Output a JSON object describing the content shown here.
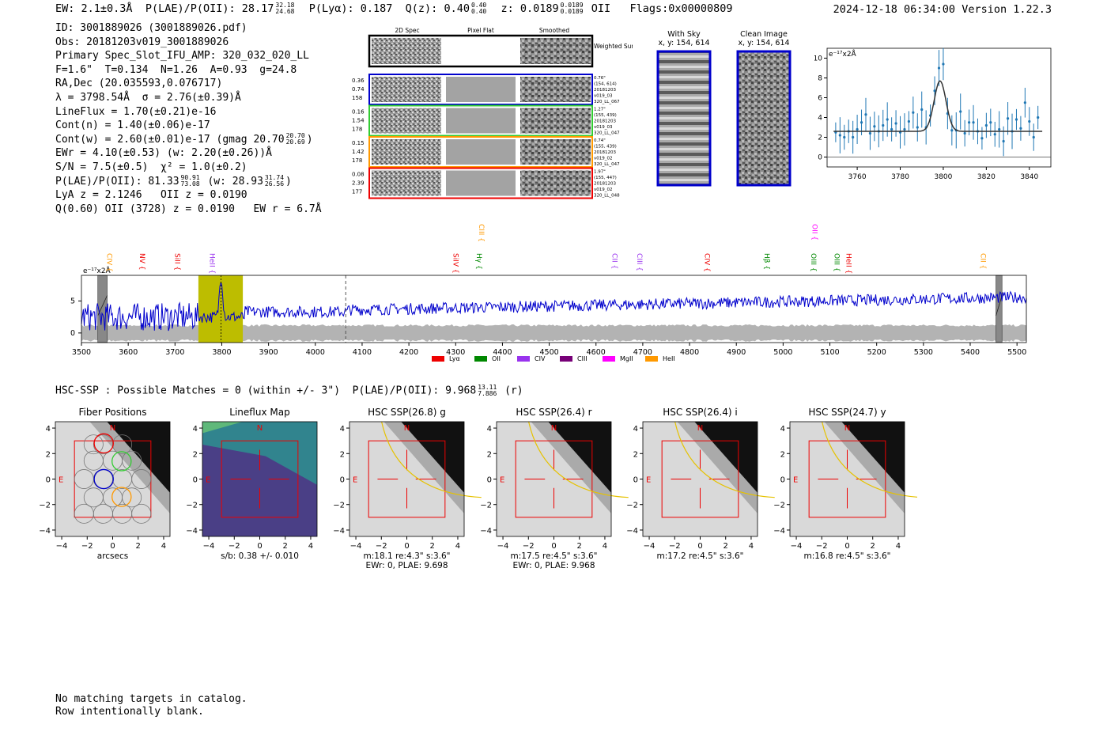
{
  "header": {
    "ew": "EW: 2.1±0.3Å",
    "plae_label": "P(LAE)/P(OII): 28.17",
    "plae_hi": "32.18",
    "plae_lo": "24.68",
    "plya": "P(Lyα): 0.187",
    "qz_label": "Q(z): 0.40",
    "qz_hi": "0.40",
    "qz_lo": "0.40",
    "z_label": "z: 0.0189",
    "z_hi": "0.0189",
    "z_lo": "0.0189",
    "z_line": "OII",
    "flags": "Flags:0x00000809",
    "date": "2024-12-18 06:34:00",
    "version": "Version 1.22.3"
  },
  "info": {
    "id": "ID: 3001889026 (3001889026.pdf)",
    "obs": "Obs: 20181203v019_3001889026",
    "primary": "Primary Spec_Slot_IFU_AMP: 320_032_020_LL",
    "fwhm": "F=1.6\"  T=0.134  N=1.26  A=0.93  g=24.8",
    "radec": "RA,Dec (20.035593,0.076717)",
    "lambda": "λ = 3798.54Å  σ = 2.76(±0.39)Å",
    "lineflux": "LineFlux = 1.70(±0.21)e-16",
    "contn": "Cont(n) = 1.40(±0.06)e-17",
    "contw": "Cont(w) = 2.60(±0.01)e-17 (gmag 20.70",
    "contw_hi": "20.70",
    "contw_lo": "20.69",
    "ewr": "EWr = 4.10(±0.53) (w: 2.20(±0.26))Å",
    "sn": "S/N = 7.5(±0.5)  χ² = 1.0(±0.2)",
    "plae2": "P(LAE)/P(OII): 81.33",
    "plae2_hi": "90.91",
    "plae2_lo": "73.08",
    "plae2_w": "(w: 28.93",
    "plae2_w_hi": "31.74",
    "plae2_w_lo": "26.56",
    "lya": "LyA z = 2.1246   OII z = 0.0190",
    "q": "Q(0.60) OII (3728) z = 0.0190   EW r = 6.7Å"
  },
  "cutouts": {
    "col_headers": [
      "2D Spec",
      "Pixel Flat",
      "Smoothed"
    ],
    "weighted": "Weighted Sum",
    "rows": [
      {
        "color": "#0000cc",
        "left": [
          "0.36",
          "0.74",
          "158"
        ],
        "right": [
          "0.76\"",
          "(154, 614)",
          "20181203",
          "v019_03",
          "320_LL_067"
        ]
      },
      {
        "color": "#33cc33",
        "left": [
          "0.16",
          "1.54",
          "178"
        ],
        "right": [
          "1.27\"",
          "(155, 439)",
          "20181203",
          "v019_03",
          "320_LL_047"
        ]
      },
      {
        "color": "#ff9900",
        "left": [
          "0.15",
          "1.42",
          "178"
        ],
        "right": [
          "0.74\"",
          "(155, 439)",
          "20181203",
          "v019_02",
          "320_LL_047"
        ]
      },
      {
        "color": "#ee0000",
        "left": [
          "0.08",
          "2.39",
          "177"
        ],
        "right": [
          "1.97\"",
          "(155, 447)",
          "20181203",
          "v019_02",
          "320_LL_048"
        ]
      }
    ]
  },
  "sky": {
    "with_sky_title": "With Sky",
    "with_sky_xy": "x, y: 154, 614",
    "clean_title": "Clean Image",
    "clean_xy": "x, y: 154, 614"
  },
  "zoom_chart": {
    "unit_label": "e⁻¹⁷x2Å",
    "xlim": [
      3746,
      3850
    ],
    "ylim": [
      -1,
      11
    ],
    "xticks": [
      "3760",
      "3780",
      "3800",
      "3820",
      "3840"
    ],
    "yticks": [
      "0",
      "2",
      "4",
      "6",
      "8",
      "10"
    ],
    "color": "#1f77b4"
  },
  "chart_data": [
    {
      "type": "scatter",
      "title": "",
      "xlabel": "",
      "ylabel": "e⁻¹⁷x2Å",
      "xlim": [
        3746,
        3850
      ],
      "ylim": [
        -1,
        11
      ],
      "x": [
        3750,
        3752,
        3754,
        3756,
        3758,
        3760,
        3762,
        3764,
        3766,
        3768,
        3770,
        3772,
        3774,
        3776,
        3778,
        3780,
        3782,
        3784,
        3786,
        3788,
        3790,
        3792,
        3794,
        3796,
        3798,
        3800,
        3802,
        3804,
        3806,
        3808,
        3810,
        3812,
        3814,
        3816,
        3818,
        3820,
        3822,
        3824,
        3826,
        3828,
        3830,
        3832,
        3834,
        3836,
        3838,
        3840,
        3842,
        3844
      ],
      "y": [
        2.5,
        2.2,
        2.0,
        2.6,
        2.0,
        2.8,
        3.5,
        4.3,
        2.4,
        3.1,
        2.6,
        3.2,
        3.8,
        2.8,
        3.4,
        2.5,
        2.8,
        3.6,
        4.5,
        3.0,
        4.8,
        3.0,
        4.2,
        6.7,
        9.0,
        9.4,
        4.4,
        2.7,
        2.7,
        4.6,
        2.4,
        3.5,
        3.5,
        2.6,
        1.9,
        3.2,
        3.5,
        2.3,
        2.8,
        1.6,
        3.9,
        2.6,
        3.8,
        2.9,
        5.5,
        3.6,
        2.0,
        4.0
      ],
      "model": "gaussian peak 7.7 at 3798.5, sigma 2.76, continuum 2.6"
    },
    {
      "type": "line",
      "title": "",
      "xlabel": "",
      "ylabel": "e⁻¹⁷x2Å",
      "xlim": [
        3500,
        5520
      ],
      "ylim": [
        -1.5,
        9
      ],
      "xticks": [
        "3500",
        "3600",
        "3700",
        "3800",
        "3900",
        "4000",
        "4100",
        "4200",
        "4300",
        "4400",
        "4500",
        "4600",
        "4700",
        "4800",
        "4900",
        "5000",
        "5100",
        "5200",
        "5300",
        "5400",
        "5500"
      ],
      "yticks": [
        "0",
        "5"
      ],
      "highlight": [
        3750,
        3845
      ],
      "marker_line": 4065,
      "series": [
        {
          "name": "flux",
          "color": "#0000cc",
          "summary": "noisy ~3 rising to ~6 at red end, peak ~9 at 3798"
        },
        {
          "name": "error",
          "color": "#b3b3b3",
          "summary": "band ~±1.2 about zero"
        }
      ],
      "lines": [
        {
          "name": "CIV",
          "wave": 3550,
          "color": "#ff9900",
          "row": 2
        },
        {
          "name": "NV",
          "wave": 3620,
          "color": "#ee0000",
          "row": 2
        },
        {
          "name": "SiII",
          "wave": 3695,
          "color": "#ee0000",
          "row": 2
        },
        {
          "name": "HeII",
          "wave": 3770,
          "color": "#9933ee",
          "row": 2
        },
        {
          "name": "SiIV",
          "wave": 4290,
          "color": "#ee0000",
          "row": 2
        },
        {
          "name": "CIII",
          "wave": 4345,
          "color": "#ff9900",
          "row": 1
        },
        {
          "name": "Hγ",
          "wave": 4340,
          "color": "#008800",
          "row": 2
        },
        {
          "name": "CII",
          "wave": 4630,
          "color": "#9933ee",
          "row": 2
        },
        {
          "name": "CIII",
          "wave": 4683,
          "color": "#9933ee",
          "row": 2
        },
        {
          "name": "CIV",
          "wave": 4828,
          "color": "#ee0000",
          "row": 2
        },
        {
          "name": "Hβ",
          "wave": 4955,
          "color": "#008800",
          "row": 2
        },
        {
          "name": "OII",
          "wave": 5058,
          "color": "#ff00ff",
          "row": 1
        },
        {
          "name": "OIII",
          "wave": 5055,
          "color": "#008800",
          "row": 2
        },
        {
          "name": "OIII",
          "wave": 5105,
          "color": "#008800",
          "row": 2
        },
        {
          "name": "HeII",
          "wave": 5130,
          "color": "#ee0000",
          "row": 2
        },
        {
          "name": "CII",
          "wave": 5418,
          "color": "#ff9900",
          "row": 2
        }
      ],
      "legend": [
        {
          "label": "Lyα",
          "color": "#ee0000"
        },
        {
          "label": "OII",
          "color": "#008800"
        },
        {
          "label": "CIV",
          "color": "#9933ee"
        },
        {
          "label": "CIII",
          "color": "#770077"
        },
        {
          "label": "MgII",
          "color": "#ff00ff"
        },
        {
          "label": "HeII",
          "color": "#ff9900"
        }
      ]
    }
  ],
  "hsc": {
    "line": "HSC-SSP : Possible Matches = 0 (within +/- 3\")  P(LAE)/P(OII): 9.968",
    "hi": "13.11",
    "lo": "7.886",
    "band": "(r)",
    "ticks": [
      "−4",
      "−2",
      "0",
      "2",
      "4"
    ],
    "n_label": "N",
    "e_label": "E",
    "panels": [
      {
        "title": "Fiber Positions",
        "captions": [
          "arcsecs"
        ]
      },
      {
        "title": "Lineflux Map",
        "captions": [
          "s/b: 0.38 +/- 0.010"
        ]
      },
      {
        "title": "HSC SSP(26.8) g",
        "captions": [
          "m:18.1  re:4.3\"  s:3.6\"",
          "EWr: 0, PLAE: 9.698"
        ]
      },
      {
        "title": "HSC SSP(26.4) r",
        "captions": [
          "m:17.5  re:4.5\"  s:3.6\"",
          "EWr: 0, PLAE: 9.968"
        ]
      },
      {
        "title": "HSC SSP(26.4) i",
        "captions": [
          "m:17.2  re:4.5\"  s:3.6\""
        ]
      },
      {
        "title": "HSC SSP(24.7) y",
        "captions": [
          "m:16.8  re:4.5\"  s:3.6\""
        ]
      }
    ]
  },
  "footer": {
    "line1": "No matching targets in catalog.",
    "line2": "Row intentionally blank."
  }
}
